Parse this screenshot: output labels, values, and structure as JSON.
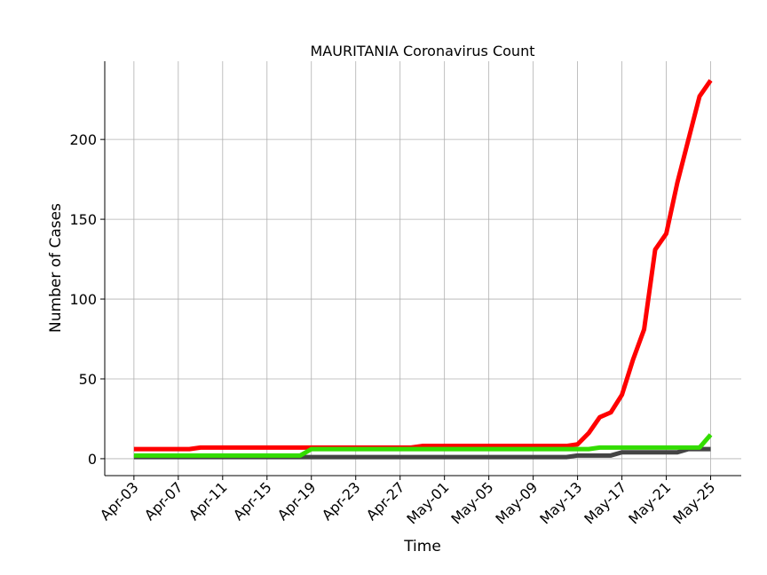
{
  "chart_data": {
    "type": "line",
    "title": "MAURITANIA Coronavirus Count",
    "xlabel": "Time",
    "ylabel": "Number of Cases",
    "categories": [
      "Apr-03",
      null,
      null,
      null,
      "Apr-07",
      null,
      null,
      null,
      "Apr-11",
      null,
      null,
      null,
      "Apr-15",
      null,
      null,
      null,
      "Apr-19",
      null,
      null,
      null,
      "Apr-23",
      null,
      null,
      null,
      "Apr-27",
      null,
      null,
      null,
      "May-01",
      null,
      null,
      null,
      "May-05",
      null,
      null,
      null,
      "May-09",
      null,
      null,
      null,
      "May-13",
      null,
      null,
      null,
      "May-17",
      null,
      null,
      null,
      "May-21",
      null,
      null,
      null,
      "May-25"
    ],
    "series": [
      {
        "color": "#ff0000",
        "values": [
          6,
          6,
          6,
          6,
          6,
          6,
          7,
          7,
          7,
          7,
          7,
          7,
          7,
          7,
          7,
          7,
          7,
          7,
          7,
          7,
          7,
          7,
          7,
          7,
          7,
          7,
          8,
          8,
          8,
          8,
          8,
          8,
          8,
          8,
          8,
          8,
          8,
          8,
          8,
          8,
          9,
          16,
          26,
          29,
          40,
          62,
          81,
          131,
          141,
          173,
          200,
          227,
          237
        ]
      },
      {
        "color": "#444444",
        "values": [
          1,
          1,
          1,
          1,
          1,
          1,
          1,
          1,
          1,
          1,
          1,
          1,
          1,
          1,
          1,
          1,
          1,
          1,
          1,
          1,
          1,
          1,
          1,
          1,
          1,
          1,
          1,
          1,
          1,
          1,
          1,
          1,
          1,
          1,
          1,
          1,
          1,
          1,
          1,
          1,
          2,
          2,
          2,
          2,
          4,
          4,
          4,
          4,
          4,
          4,
          6,
          6,
          6
        ]
      },
      {
        "color": "#33dd00",
        "values": [
          2,
          2,
          2,
          2,
          2,
          2,
          2,
          2,
          2,
          2,
          2,
          2,
          2,
          2,
          2,
          2,
          6,
          6,
          6,
          6,
          6,
          6,
          6,
          6,
          6,
          6,
          6,
          6,
          6,
          6,
          6,
          6,
          6,
          6,
          6,
          6,
          6,
          6,
          6,
          6,
          6,
          6,
          7,
          7,
          7,
          7,
          7,
          7,
          7,
          7,
          7,
          7,
          15
        ]
      }
    ],
    "ylim": [
      -10.6,
      249
    ],
    "yticks": [
      0,
      50,
      100,
      150,
      200
    ],
    "grid": true
  }
}
